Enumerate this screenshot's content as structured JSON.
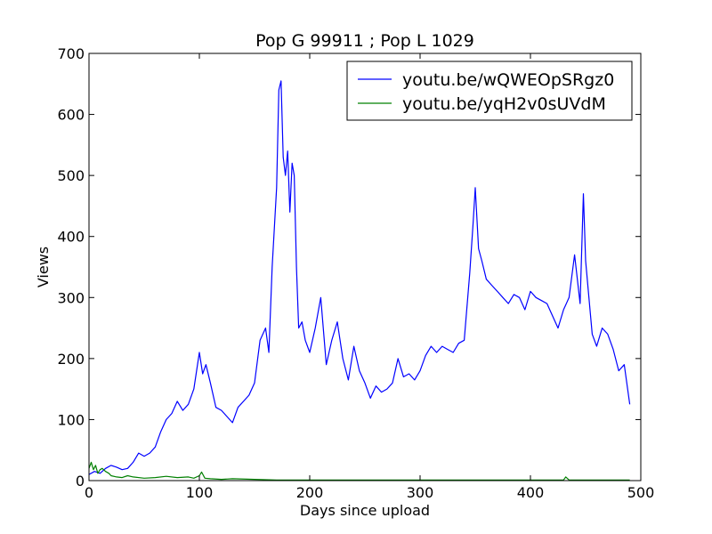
{
  "chart_data": {
    "type": "line",
    "title": "Pop G 99911 ; Pop L 1029",
    "xlabel": "Days since upload",
    "ylabel": "Views",
    "xlim": [
      0,
      500
    ],
    "ylim": [
      0,
      700
    ],
    "x_ticks": [
      "0",
      "100",
      "200",
      "300",
      "400",
      "500"
    ],
    "y_ticks": [
      "0",
      "100",
      "200",
      "300",
      "400",
      "500",
      "600",
      "700"
    ],
    "grid": false,
    "legend_position": "top-right",
    "series": [
      {
        "name": "youtu.be/wQWEOpSRgz0",
        "color": "#0000ff",
        "x": [
          0,
          5,
          10,
          15,
          20,
          25,
          30,
          35,
          40,
          45,
          50,
          55,
          60,
          65,
          70,
          75,
          80,
          85,
          90,
          95,
          100,
          103,
          106,
          110,
          115,
          120,
          125,
          130,
          135,
          140,
          145,
          150,
          155,
          160,
          163,
          166,
          170,
          172,
          174,
          176,
          178,
          180,
          182,
          184,
          186,
          188,
          190,
          193,
          196,
          200,
          205,
          210,
          215,
          220,
          225,
          230,
          235,
          240,
          245,
          250,
          255,
          260,
          265,
          270,
          275,
          280,
          285,
          290,
          295,
          300,
          305,
          310,
          315,
          320,
          325,
          330,
          335,
          340,
          345,
          348,
          350,
          353,
          356,
          360,
          365,
          370,
          375,
          380,
          385,
          390,
          395,
          400,
          405,
          410,
          415,
          420,
          425,
          430,
          435,
          440,
          445,
          448,
          450,
          453,
          456,
          460,
          465,
          470,
          475,
          480,
          485,
          490
        ],
        "y": [
          10,
          15,
          12,
          20,
          25,
          22,
          18,
          20,
          30,
          45,
          40,
          45,
          55,
          80,
          100,
          110,
          130,
          115,
          125,
          150,
          210,
          175,
          190,
          160,
          120,
          115,
          105,
          95,
          120,
          130,
          140,
          160,
          230,
          250,
          210,
          350,
          480,
          640,
          655,
          530,
          500,
          540,
          440,
          520,
          500,
          350,
          250,
          260,
          230,
          210,
          250,
          300,
          190,
          230,
          260,
          200,
          165,
          220,
          180,
          160,
          135,
          155,
          145,
          150,
          160,
          200,
          170,
          175,
          165,
          180,
          205,
          220,
          210,
          220,
          215,
          210,
          225,
          230,
          340,
          420,
          480,
          380,
          360,
          330,
          320,
          310,
          300,
          290,
          305,
          300,
          280,
          310,
          300,
          295,
          290,
          270,
          250,
          280,
          300,
          370,
          290,
          470,
          360,
          300,
          240,
          220,
          250,
          240,
          215,
          180,
          190,
          125
        ]
      },
      {
        "name": "youtu.be/yqH2v0sUVdM",
        "color": "#008000",
        "x": [
          0,
          2,
          4,
          6,
          8,
          10,
          12,
          15,
          18,
          20,
          25,
          30,
          35,
          40,
          50,
          60,
          70,
          80,
          90,
          95,
          100,
          102,
          105,
          110,
          120,
          130,
          150,
          170,
          200,
          250,
          300,
          350,
          400,
          430,
          432,
          435,
          450,
          490
        ],
        "y": [
          20,
          30,
          18,
          25,
          12,
          18,
          20,
          15,
          12,
          8,
          6,
          5,
          8,
          6,
          4,
          5,
          7,
          5,
          6,
          4,
          8,
          14,
          4,
          3,
          2,
          3,
          2,
          1,
          1,
          1,
          1,
          1,
          1,
          1,
          6,
          1,
          1,
          1
        ]
      }
    ]
  }
}
